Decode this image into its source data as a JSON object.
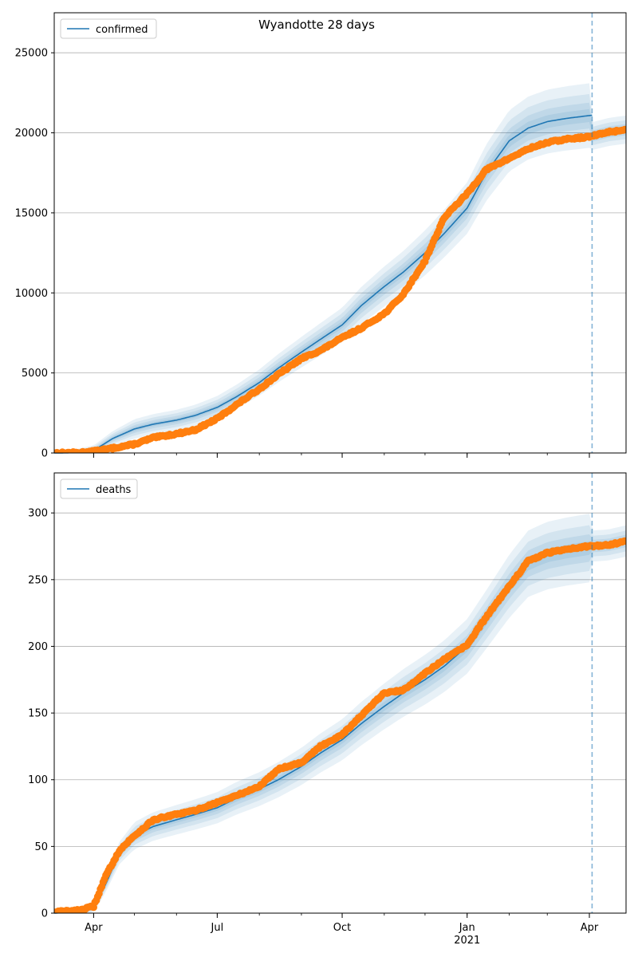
{
  "chart_data": {
    "title": "Wyandotte 28 days",
    "type": "line",
    "x_ticks": [
      {
        "date": "2020-04-01",
        "label": "Apr",
        "sublabel": ""
      },
      {
        "date": "2020-07-01",
        "label": "Jul",
        "sublabel": ""
      },
      {
        "date": "2020-10-01",
        "label": "Oct",
        "sublabel": ""
      },
      {
        "date": "2021-01-01",
        "label": "Jan",
        "sublabel": "2021"
      },
      {
        "date": "2021-04-01",
        "label": "Apr",
        "sublabel": ""
      }
    ],
    "xlim": [
      "2020-03-03",
      "2021-04-28"
    ],
    "forecast_start": "2021-04-03",
    "colors": {
      "model": "#1f77b4",
      "observed": "#ff7f0e",
      "band": "#1f77b4",
      "grid": "#b0b0b0"
    },
    "panels": [
      {
        "name": "confirmed",
        "legend": "confirmed",
        "ylim": [
          0,
          27500
        ],
        "yticks": [
          0,
          5000,
          10000,
          15000,
          20000,
          25000
        ],
        "grid": true,
        "legend_position": "upper-left",
        "model": [
          [
            "2020-03-03",
            0
          ],
          [
            "2020-03-20",
            20
          ],
          [
            "2020-04-01",
            150
          ],
          [
            "2020-04-15",
            900
          ],
          [
            "2020-05-01",
            1500
          ],
          [
            "2020-05-15",
            1800
          ],
          [
            "2020-06-01",
            2050
          ],
          [
            "2020-06-15",
            2350
          ],
          [
            "2020-07-01",
            2850
          ],
          [
            "2020-07-15",
            3500
          ],
          [
            "2020-08-01",
            4400
          ],
          [
            "2020-08-15",
            5300
          ],
          [
            "2020-09-01",
            6300
          ],
          [
            "2020-09-15",
            7100
          ],
          [
            "2020-10-01",
            8000
          ],
          [
            "2020-10-15",
            9200
          ],
          [
            "2020-11-01",
            10400
          ],
          [
            "2020-11-15",
            11300
          ],
          [
            "2020-12-01",
            12500
          ],
          [
            "2020-12-15",
            13700
          ],
          [
            "2021-01-01",
            15300
          ],
          [
            "2021-01-15",
            17500
          ],
          [
            "2021-02-01",
            19500
          ],
          [
            "2021-02-15",
            20300
          ],
          [
            "2021-03-01",
            20700
          ],
          [
            "2021-03-15",
            20900
          ],
          [
            "2021-04-03",
            21100
          ]
        ],
        "band_half_widths": [
          [
            0,
            0
          ],
          [
            0.06,
            0.08
          ],
          [
            0.12,
            0.16
          ],
          [
            0.2,
            0.3
          ]
        ],
        "observed": [
          [
            "2020-03-03",
            0
          ],
          [
            "2020-03-20",
            20
          ],
          [
            "2020-04-01",
            100
          ],
          [
            "2020-04-15",
            300
          ],
          [
            "2020-05-01",
            550
          ],
          [
            "2020-05-15",
            950
          ],
          [
            "2020-06-01",
            1200
          ],
          [
            "2020-06-15",
            1450
          ],
          [
            "2020-07-01",
            2150
          ],
          [
            "2020-07-15",
            3000
          ],
          [
            "2020-08-01",
            4000
          ],
          [
            "2020-08-15",
            4900
          ],
          [
            "2020-09-01",
            5900
          ],
          [
            "2020-09-15",
            6400
          ],
          [
            "2020-10-01",
            7200
          ],
          [
            "2020-10-15",
            7800
          ],
          [
            "2020-11-01",
            8700
          ],
          [
            "2020-11-15",
            9900
          ],
          [
            "2020-12-01",
            12000
          ],
          [
            "2020-12-15",
            14700
          ],
          [
            "2021-01-01",
            16200
          ],
          [
            "2021-01-15",
            17700
          ],
          [
            "2021-02-01",
            18400
          ],
          [
            "2021-02-15",
            19000
          ],
          [
            "2021-03-01",
            19400
          ],
          [
            "2021-03-15",
            19600
          ],
          [
            "2021-04-01",
            19750
          ],
          [
            "2021-04-15",
            20050
          ],
          [
            "2021-04-28",
            20200
          ]
        ]
      },
      {
        "name": "deaths",
        "legend": "deaths",
        "ylim": [
          0,
          330
        ],
        "yticks": [
          0,
          50,
          100,
          150,
          200,
          250,
          300
        ],
        "grid": true,
        "legend_position": "upper-left",
        "model": [
          [
            "2020-03-03",
            0
          ],
          [
            "2020-03-20",
            1
          ],
          [
            "2020-04-01",
            4
          ],
          [
            "2020-04-10",
            22
          ],
          [
            "2020-04-20",
            45
          ],
          [
            "2020-05-01",
            58
          ],
          [
            "2020-05-15",
            65
          ],
          [
            "2020-06-01",
            70
          ],
          [
            "2020-06-15",
            74
          ],
          [
            "2020-07-01",
            79
          ],
          [
            "2020-07-15",
            86
          ],
          [
            "2020-08-01",
            93
          ],
          [
            "2020-08-15",
            100
          ],
          [
            "2020-09-01",
            110
          ],
          [
            "2020-09-15",
            120
          ],
          [
            "2020-10-01",
            130
          ],
          [
            "2020-10-15",
            142
          ],
          [
            "2020-11-01",
            155
          ],
          [
            "2020-11-15",
            165
          ],
          [
            "2020-12-01",
            175
          ],
          [
            "2020-12-15",
            185
          ],
          [
            "2021-01-01",
            200
          ],
          [
            "2021-01-15",
            220
          ],
          [
            "2021-02-01",
            245
          ],
          [
            "2021-02-15",
            262
          ],
          [
            "2021-03-01",
            268
          ],
          [
            "2021-03-15",
            271
          ],
          [
            "2021-04-03",
            274
          ]
        ],
        "band_half_widths": [
          [
            0,
            0
          ],
          [
            0.06,
            0.08
          ],
          [
            0.12,
            0.16
          ],
          [
            0.2,
            0.3
          ]
        ],
        "observed": [
          [
            "2020-03-03",
            1
          ],
          [
            "2020-03-20",
            2
          ],
          [
            "2020-04-01",
            5
          ],
          [
            "2020-04-10",
            28
          ],
          [
            "2020-04-20",
            47
          ],
          [
            "2020-05-01",
            58
          ],
          [
            "2020-05-15",
            70
          ],
          [
            "2020-06-01",
            74
          ],
          [
            "2020-06-15",
            77
          ],
          [
            "2020-07-01",
            83
          ],
          [
            "2020-07-15",
            88
          ],
          [
            "2020-08-01",
            95
          ],
          [
            "2020-08-15",
            108
          ],
          [
            "2020-09-01",
            113
          ],
          [
            "2020-09-15",
            125
          ],
          [
            "2020-10-01",
            134
          ],
          [
            "2020-10-15",
            148
          ],
          [
            "2020-11-01",
            165
          ],
          [
            "2020-11-15",
            167
          ],
          [
            "2020-12-01",
            180
          ],
          [
            "2020-12-15",
            190
          ],
          [
            "2021-01-01",
            201
          ],
          [
            "2021-01-15",
            222
          ],
          [
            "2021-02-01",
            245
          ],
          [
            "2021-02-15",
            264
          ],
          [
            "2021-03-01",
            270
          ],
          [
            "2021-03-15",
            273
          ],
          [
            "2021-04-01",
            275
          ],
          [
            "2021-04-15",
            276
          ],
          [
            "2021-04-28",
            279
          ]
        ]
      }
    ]
  }
}
